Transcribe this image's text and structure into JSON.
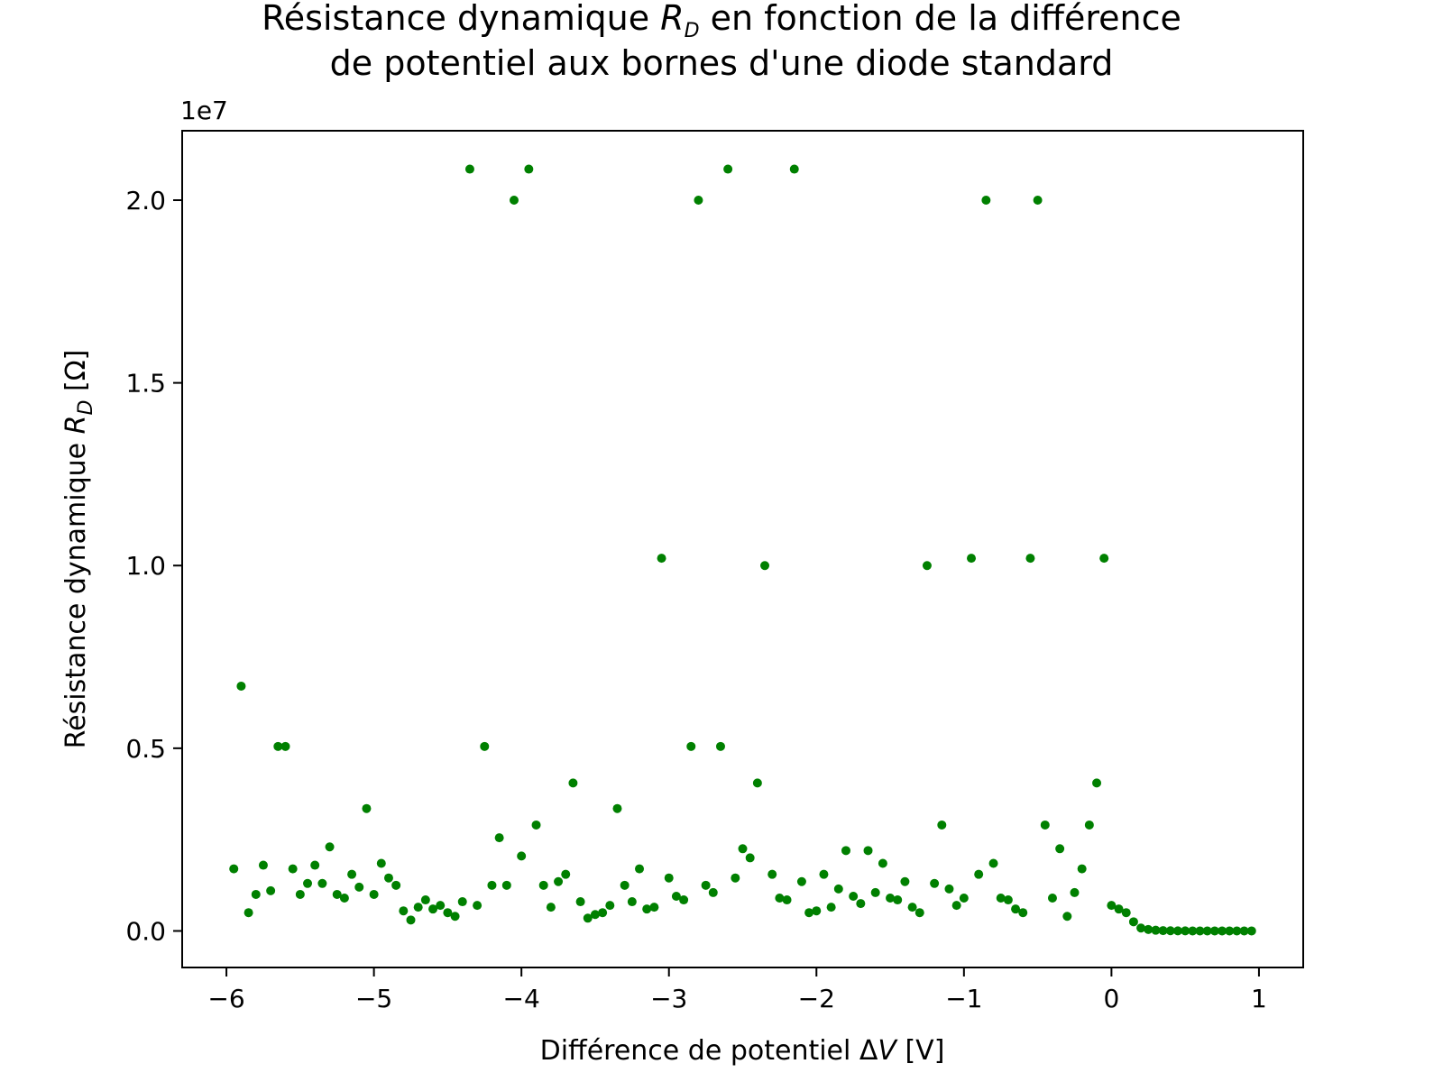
{
  "chart_data": {
    "type": "scatter",
    "title_lines": [
      "Résistance dynamique R_D en fonction de la différence",
      "de potentiel aux bornes d'une diode standard"
    ],
    "title_line1_pre": "Résistance dynamique ",
    "title_line1_sym": "R",
    "title_line1_sub": "D",
    "title_line1_post": " en fonction de la différence",
    "title_line2": "de potentiel aux bornes d'une diode standard",
    "xlabel_pre": "Différence de potentiel Δ",
    "xlabel_sym": "V",
    "xlabel_post": " [V]",
    "ylabel_pre": "Résistance dynamique ",
    "ylabel_sym": "R",
    "ylabel_sub": "D",
    "ylabel_post": " [Ω]",
    "offset_label": "1e7",
    "y_multiplier": 10000000,
    "xlim": [
      -6.3,
      1.3
    ],
    "ylim": [
      -1000000,
      21900000
    ],
    "x_ticks": [
      -6,
      -5,
      -4,
      -3,
      -2,
      -1,
      0,
      1
    ],
    "x_tick_labels": [
      "−6",
      "−5",
      "−4",
      "−3",
      "−2",
      "−1",
      "0",
      "1"
    ],
    "y_ticks": [
      0,
      5000000,
      10000000,
      15000000,
      20000000
    ],
    "y_tick_labels": [
      "0.0",
      "0.5",
      "1.0",
      "1.5",
      "2.0"
    ],
    "grid": false,
    "marker_color": "#008000",
    "x": [
      -5.95,
      -5.9,
      -5.85,
      -5.8,
      -5.75,
      -5.7,
      -5.65,
      -5.6,
      -5.55,
      -5.5,
      -5.45,
      -5.4,
      -5.35,
      -5.3,
      -5.25,
      -5.2,
      -5.15,
      -5.1,
      -5.05,
      -5.0,
      -4.95,
      -4.9,
      -4.85,
      -4.8,
      -4.75,
      -4.7,
      -4.65,
      -4.6,
      -4.55,
      -4.5,
      -4.45,
      -4.4,
      -4.35,
      -4.3,
      -4.25,
      -4.2,
      -4.15,
      -4.1,
      -4.05,
      -4.0,
      -3.95,
      -3.9,
      -3.85,
      -3.8,
      -3.75,
      -3.7,
      -3.65,
      -3.6,
      -3.55,
      -3.5,
      -3.45,
      -3.4,
      -3.35,
      -3.3,
      -3.25,
      -3.2,
      -3.15,
      -3.1,
      -3.05,
      -3.0,
      -2.95,
      -2.9,
      -2.85,
      -2.8,
      -2.75,
      -2.7,
      -2.65,
      -2.6,
      -2.55,
      -2.5,
      -2.45,
      -2.4,
      -2.35,
      -2.3,
      -2.25,
      -2.2,
      -2.15,
      -2.1,
      -2.05,
      -2.0,
      -1.95,
      -1.9,
      -1.85,
      -1.8,
      -1.75,
      -1.7,
      -1.65,
      -1.6,
      -1.55,
      -1.5,
      -1.45,
      -1.4,
      -1.35,
      -1.3,
      -1.25,
      -1.2,
      -1.15,
      -1.1,
      -1.05,
      -1.0,
      -0.95,
      -0.9,
      -0.85,
      -0.8,
      -0.75,
      -0.7,
      -0.65,
      -0.6,
      -0.55,
      -0.5,
      -0.45,
      -0.4,
      -0.35,
      -0.3,
      -0.25,
      -0.2,
      -0.15,
      -0.1,
      -0.05,
      0.0,
      0.05,
      0.1,
      0.15,
      0.2,
      0.25,
      0.3,
      0.35,
      0.4,
      0.45,
      0.5,
      0.55,
      0.6,
      0.65,
      0.7,
      0.75,
      0.8,
      0.85,
      0.9,
      0.95
    ],
    "y": [
      1700000,
      6700000,
      500000,
      1000000,
      1800000,
      1100000,
      5050000,
      5050000,
      1700000,
      1000000,
      1300000,
      1800000,
      1300000,
      2300000,
      1000000,
      900000,
      1550000,
      1200000,
      3350000,
      1000000,
      1850000,
      1450000,
      1250000,
      550000,
      300000,
      650000,
      850000,
      600000,
      700000,
      500000,
      400000,
      800000,
      20850000,
      700000,
      5050000,
      1250000,
      2550000,
      1250000,
      20000000,
      2050000,
      20850000,
      2900000,
      1250000,
      650000,
      1350000,
      1550000,
      4050000,
      800000,
      350000,
      450000,
      500000,
      700000,
      3350000,
      1250000,
      800000,
      1700000,
      600000,
      650000,
      10200000,
      1450000,
      950000,
      850000,
      5050000,
      20000000,
      1250000,
      1050000,
      5050000,
      20850000,
      1450000,
      2250000,
      2000000,
      4050000,
      10000000,
      1550000,
      900000,
      850000,
      20850000,
      1350000,
      500000,
      550000,
      1550000,
      650000,
      1150000,
      2200000,
      950000,
      750000,
      2200000,
      1050000,
      1850000,
      900000,
      850000,
      1350000,
      650000,
      500000,
      10000000,
      1300000,
      2900000,
      1150000,
      700000,
      900000,
      10200000,
      1550000,
      20000000,
      1850000,
      900000,
      850000,
      600000,
      500000,
      10200000,
      20000000,
      2900000,
      900000,
      2250000,
      400000,
      1050000,
      1700000,
      2900000,
      4050000,
      10200000,
      700000,
      600000,
      500000,
      250000,
      80000,
      40000,
      20000,
      10000,
      5000,
      3000,
      2000,
      1000,
      800,
      600,
      500,
      400,
      300,
      250,
      200,
      150
    ]
  }
}
